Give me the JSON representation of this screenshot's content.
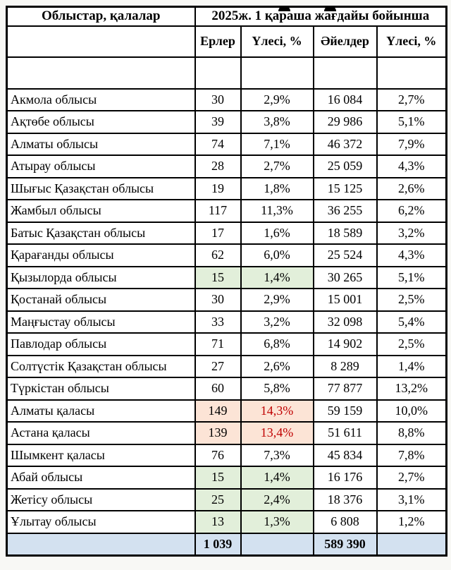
{
  "table": {
    "header": {
      "col1": "Облыстар, қалалар",
      "span_title": "2025ж. 1 қараша жағдайы бойынша",
      "columns": [
        "Ерлер",
        "Үлесі, %",
        "Әйелдер",
        "Үлесі, %"
      ]
    },
    "rows": [
      {
        "name": "Акмола облысы",
        "men": "30",
        "men_share": "2,9%",
        "women": "16 084",
        "women_share": "2,7%",
        "highlight": "none"
      },
      {
        "name": "Ақтөбе облысы",
        "men": "39",
        "men_share": "3,8%",
        "women": "29 986",
        "women_share": "5,1%",
        "highlight": "none"
      },
      {
        "name": "Алматы облысы",
        "men": "74",
        "men_share": "7,1%",
        "women": "46 372",
        "women_share": "7,9%",
        "highlight": "none"
      },
      {
        "name": "Атырау облысы",
        "men": "28",
        "men_share": "2,7%",
        "women": "25 059",
        "women_share": "4,3%",
        "highlight": "none"
      },
      {
        "name": "Шығыс Қазақстан облысы",
        "men": "19",
        "men_share": "1,8%",
        "women": "15 125",
        "women_share": "2,6%",
        "highlight": "none"
      },
      {
        "name": "Жамбыл облысы",
        "men": "117",
        "men_share": "11,3%",
        "women": "36 255",
        "women_share": "6,2%",
        "highlight": "none"
      },
      {
        "name": "Батыс Қазақстан облысы",
        "men": "17",
        "men_share": "1,6%",
        "women": "18 589",
        "women_share": "3,2%",
        "highlight": "none"
      },
      {
        "name": "Қарағанды облысы",
        "men": "62",
        "men_share": "6,0%",
        "women": "25 524",
        "women_share": "4,3%",
        "highlight": "none"
      },
      {
        "name": "Қызылорда облысы",
        "men": "15",
        "men_share": "1,4%",
        "women": "30 265",
        "women_share": "5,1%",
        "highlight": "green"
      },
      {
        "name": "Қостанай облысы",
        "men": "30",
        "men_share": "2,9%",
        "women": "15 001",
        "women_share": "2,5%",
        "highlight": "none"
      },
      {
        "name": "Маңғыстау облысы",
        "men": "33",
        "men_share": "3,2%",
        "women": "32 098",
        "women_share": "5,4%",
        "highlight": "none"
      },
      {
        "name": "Павлодар облысы",
        "men": "71",
        "men_share": "6,8%",
        "women": "14 902",
        "women_share": "2,5%",
        "highlight": "none"
      },
      {
        "name": "Солтүстік Қазақстан облысы",
        "men": "27",
        "men_share": "2,6%",
        "women": "8 289",
        "women_share": "1,4%",
        "highlight": "none"
      },
      {
        "name": "Түркістан облысы",
        "men": "60",
        "men_share": "5,8%",
        "women": "77 877",
        "women_share": "13,2%",
        "highlight": "none"
      },
      {
        "name": "Алматы қаласы",
        "men": "149",
        "men_share": "14,3%",
        "women": "59 159",
        "women_share": "10,0%",
        "highlight": "red"
      },
      {
        "name": "Астана қаласы",
        "men": "139",
        "men_share": "13,4%",
        "women": "51 611",
        "women_share": "8,8%",
        "highlight": "red"
      },
      {
        "name": "Шымкент қаласы",
        "men": "76",
        "men_share": "7,3%",
        "women": "45 834",
        "women_share": "7,8%",
        "highlight": "none"
      },
      {
        "name": "Абай облысы",
        "men": "15",
        "men_share": "1,4%",
        "women": "16 176",
        "women_share": "2,7%",
        "highlight": "green"
      },
      {
        "name": "Жетісу облысы",
        "men": "25",
        "men_share": "2,4%",
        "women": "18 376",
        "women_share": "3,1%",
        "highlight": "green"
      },
      {
        "name": "Ұлытау облысы",
        "men": "13",
        "men_share": "1,3%",
        "women": "6 808",
        "women_share": "1,2%",
        "highlight": "green"
      }
    ],
    "totals": {
      "men": "1 039",
      "women": "589 390"
    }
  },
  "colors": {
    "green_bg": "#e2efda",
    "red_bg": "#fce4d6",
    "red_text": "#c00000",
    "total_bg": "#d3e1f0",
    "border": "#000000"
  }
}
